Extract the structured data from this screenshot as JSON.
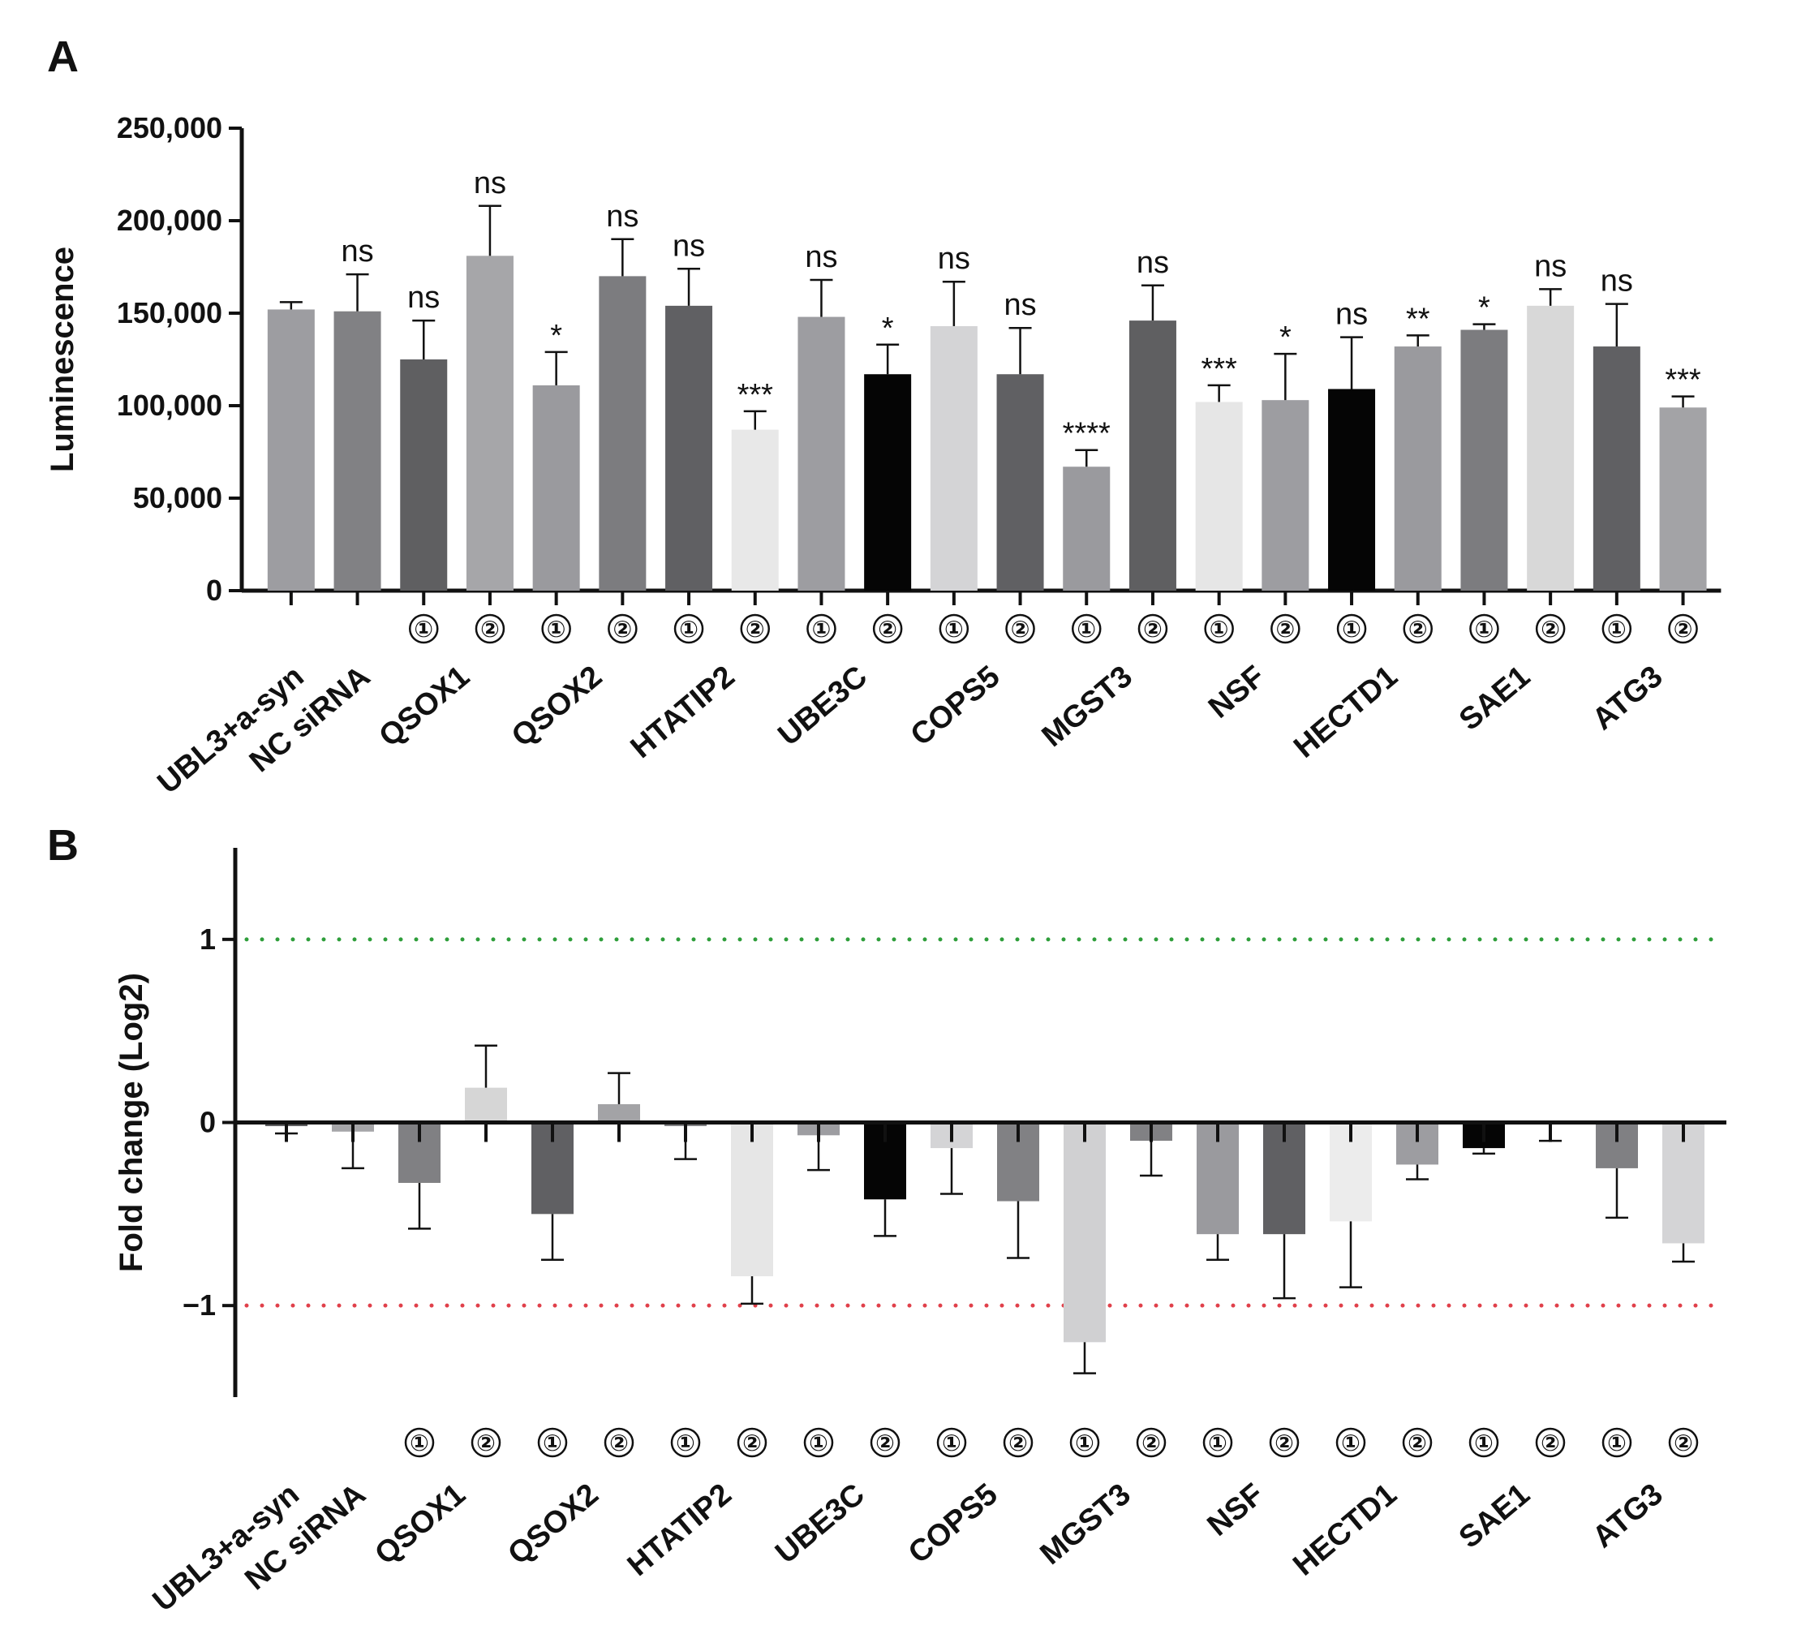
{
  "chart_data": [
    {
      "panel": "A",
      "type": "bar",
      "ylabel": "Luminescence",
      "ylim": [
        0,
        250000
      ],
      "yticks": [
        0,
        50000,
        100000,
        150000,
        200000,
        250000
      ],
      "ytick_labels": [
        "0",
        "50,000",
        "100,000",
        "150,000",
        "200,000",
        "250,000"
      ],
      "bar_labels": [
        "",
        "",
        "①",
        "②",
        "①",
        "②",
        "①",
        "②",
        "①",
        "②",
        "①",
        "②",
        "①",
        "②",
        "①",
        "②",
        "①",
        "②",
        "①",
        "②",
        "①",
        "②"
      ],
      "groups": [
        "UBL3+a-syn",
        "NC siRNA",
        "QSOX1",
        "QSOX2",
        "HTATIP2",
        "UBE3C",
        "COPS5",
        "MGST3",
        "NSF",
        "HECTD1",
        "SAE1",
        "ATG3"
      ],
      "values": [
        152000,
        151000,
        125000,
        181000,
        111000,
        170000,
        154000,
        87000,
        148000,
        117000,
        143000,
        117000,
        67000,
        146000,
        102000,
        103000,
        109000,
        132000,
        141000,
        154000,
        132000,
        99000
      ],
      "errors": [
        4000,
        20000,
        21000,
        27000,
        18000,
        20000,
        20000,
        10000,
        20000,
        16000,
        24000,
        25000,
        9000,
        19000,
        9000,
        25000,
        28000,
        6000,
        3000,
        9000,
        23000,
        6000
      ],
      "significance": [
        "",
        "ns",
        "ns",
        "ns",
        "*",
        "ns",
        "ns",
        "***",
        "ns",
        "*",
        "ns",
        "ns",
        "****",
        "ns",
        "***",
        "*",
        "ns",
        "**",
        "*",
        "ns",
        "ns",
        "***"
      ],
      "colors": [
        "#9d9da1",
        "#818184",
        "#5f5f61",
        "#a6a6a9",
        "#9a9a9e",
        "#7c7c7f",
        "#606063",
        "#e8e8e8",
        "#9d9da1",
        "#050505",
        "#d4d4d6",
        "#606063",
        "#9a9a9e",
        "#5f5f61",
        "#e6e6e6",
        "#9d9da1",
        "#050505",
        "#9a9a9e",
        "#7c7c7f",
        "#d8d8d8",
        "#606063",
        "#a3a3a6"
      ]
    },
    {
      "panel": "B",
      "type": "bar",
      "ylabel": "Fold change (Log2)",
      "ylim": [
        -1.5,
        1.5
      ],
      "yticks": [
        -1,
        0,
        1
      ],
      "ytick_labels": [
        "−1",
        "0",
        "1"
      ],
      "reference_lines": [
        {
          "value": 1,
          "color": "#2e9e3a",
          "style": "dotted"
        },
        {
          "value": -1,
          "color": "#e0404a",
          "style": "dotted"
        }
      ],
      "bar_labels": [
        "",
        "",
        "①",
        "②",
        "①",
        "②",
        "①",
        "②",
        "①",
        "②",
        "①",
        "②",
        "①",
        "②",
        "①",
        "②",
        "①",
        "②",
        "①",
        "②",
        "①",
        "②"
      ],
      "groups": [
        "UBL3+a-syn",
        "NC siRNA",
        "QSOX1",
        "QSOX2",
        "HTATIP2",
        "UBE3C",
        "COPS5",
        "MGST3",
        "NSF",
        "HECTD1",
        "SAE1",
        "ATG3"
      ],
      "values": [
        -0.02,
        -0.05,
        -0.33,
        0.19,
        -0.5,
        0.1,
        -0.02,
        -0.84,
        -0.07,
        -0.42,
        -0.14,
        -0.43,
        -1.2,
        -0.1,
        -0.61,
        -0.61,
        -0.54,
        -0.23,
        -0.14,
        -0.01,
        -0.25,
        -0.66
      ],
      "errors": [
        0.04,
        0.2,
        0.25,
        0.23,
        0.25,
        0.17,
        0.18,
        0.15,
        0.19,
        0.2,
        0.25,
        0.31,
        0.17,
        0.19,
        0.14,
        0.35,
        0.36,
        0.08,
        0.03,
        0.09,
        0.27,
        0.1
      ],
      "colors": [
        "#5f5f61",
        "#a6a6a9",
        "#808083",
        "#d6d6d6",
        "#606063",
        "#a3a3a6",
        "#818184",
        "#e6e6e6",
        "#9d9da1",
        "#050505",
        "#d4d4d6",
        "#818184",
        "#d0d0d2",
        "#818184",
        "#9a9a9e",
        "#606063",
        "#ececec",
        "#9d9da1",
        "#050505",
        "#9d9da1",
        "#808083",
        "#d4d4d6"
      ]
    }
  ]
}
